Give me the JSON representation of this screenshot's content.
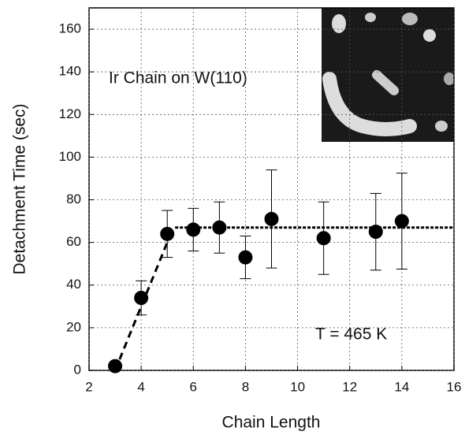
{
  "chart_data": {
    "type": "scatter",
    "x_label": "Chain Length",
    "y_label": "Detachment Time (sec)",
    "annotations": [
      "Ir Chain on W(110)",
      "T = 465 K"
    ],
    "x": [
      3,
      4,
      5,
      6,
      7,
      8,
      9,
      11,
      13,
      14
    ],
    "values": [
      2,
      34,
      64,
      66,
      67,
      53,
      71,
      62,
      65,
      70
    ],
    "errors": [
      null,
      8,
      11,
      10,
      12,
      10,
      23,
      17,
      18,
      22.5
    ],
    "color": "#000000",
    "fit_lines": [
      {
        "x": [
          3,
          5
        ],
        "y": [
          0,
          60
        ]
      },
      {
        "x": [
          5.3,
          16
        ],
        "y": [
          67,
          67
        ]
      }
    ],
    "xlim": [
      2,
      16
    ],
    "xticks": [
      2,
      4,
      6,
      8,
      10,
      12,
      14,
      16
    ],
    "ylim": [
      0,
      170
    ],
    "yticks": [
      0,
      20,
      40,
      60,
      80,
      100,
      120,
      140,
      160
    ],
    "grid": true
  }
}
